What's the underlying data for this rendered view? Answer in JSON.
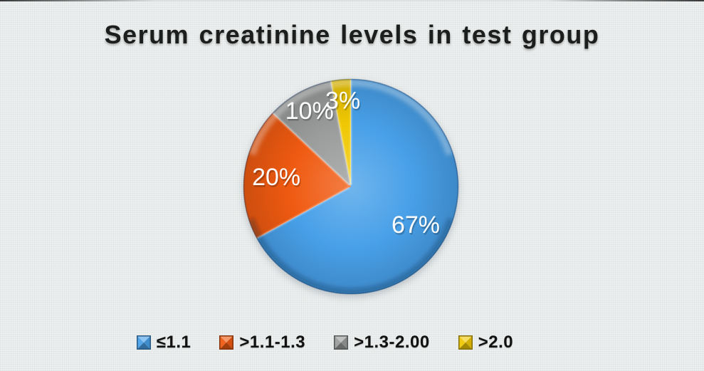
{
  "page": {
    "background": "#eef0ef"
  },
  "title": {
    "text": "Serum creatinine levels in test group",
    "color": "#1c1d1d"
  },
  "chart_data": {
    "type": "pie",
    "title": "Serum creatinine levels in test group",
    "categories": [
      "≤1.1",
      ">1.1-1.3",
      ">1.3-2.00",
      ">2.0"
    ],
    "values": [
      67,
      20,
      10,
      3
    ],
    "slice_labels": [
      "67%",
      "20%",
      "10%",
      "3%"
    ],
    "colors": [
      "#48a0e8",
      "#ef5a11",
      "#999c9b",
      "#f0c803"
    ],
    "label_color": "#fdfdfd",
    "start_angle_deg": 0,
    "direction": "clockwise",
    "legend_position": "bottom",
    "style": "3d-bevel"
  },
  "legend": {
    "items": [
      {
        "label": "≤1.1",
        "color": "#48a0e8"
      },
      {
        "label": ">1.1-1.3",
        "color": "#ef5a11"
      },
      {
        "label": ">1.3-2.00",
        "color": "#999c9b"
      },
      {
        "label": ">2.0",
        "color": "#f0c803"
      }
    ]
  }
}
